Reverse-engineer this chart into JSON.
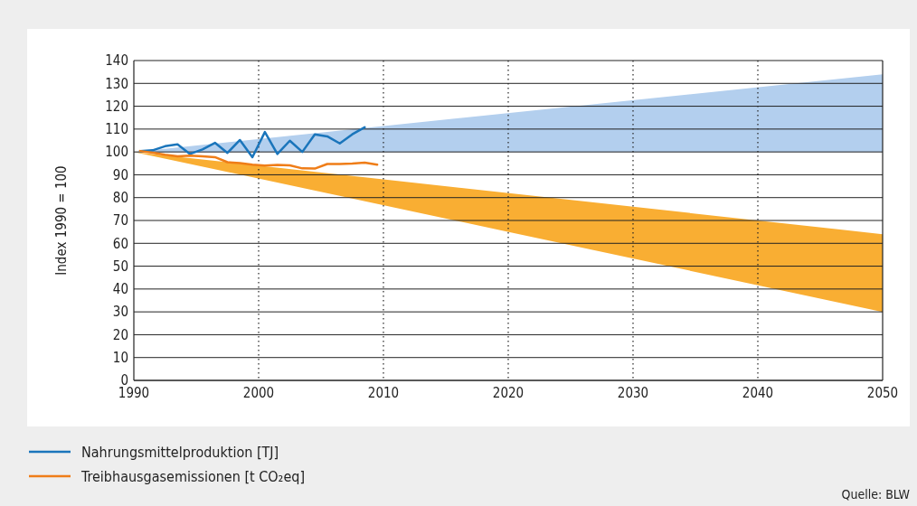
{
  "chart_data": {
    "type": "line",
    "ylabel": "Index 1990 = 100",
    "xlim": [
      1990,
      2050
    ],
    "xticks": [
      1990,
      2000,
      2010,
      2020,
      2030,
      2040,
      2050
    ],
    "ylim": [
      0,
      140
    ],
    "yticks": [
      0,
      10,
      20,
      30,
      40,
      50,
      60,
      70,
      80,
      90,
      100,
      110,
      120,
      130,
      140
    ],
    "grid": true,
    "legend": "bottom",
    "marker": "none",
    "line_style": "solid",
    "annotations": [
      "Quelle: BLW"
    ],
    "series": [
      {
        "type": "area",
        "color": "#b3cfee",
        "x": [
          1990,
          2050
        ],
        "lower": [
          100,
          100
        ],
        "upper": [
          100,
          134
        ],
        "values": [
          null,
          null
        ]
      },
      {
        "type": "area",
        "color": "#f9ae33",
        "x": [
          1990,
          2050
        ],
        "lower": [
          100,
          30
        ],
        "upper": [
          100,
          64
        ],
        "values": [
          null,
          null
        ]
      },
      {
        "name": "Nahrungsmittelproduktion [TJ]",
        "color": "#1a75bb",
        "x": [
          1990.5,
          1991.5,
          1992.5,
          1993.5,
          1994.5,
          1995.5,
          1996.5,
          1997.5,
          1998.5,
          1999.5,
          2000.5,
          2001.5,
          2002.5,
          2003.5,
          2004.5,
          2005.5,
          2006.5,
          2007.5,
          2008.5
        ],
        "values": [
          100.4,
          100.7,
          102.5,
          103.3,
          99.1,
          101.1,
          104,
          99.6,
          105.2,
          97.7,
          108.7,
          99.1,
          104.9,
          100,
          107.7,
          106.8,
          103.7,
          107.7,
          110.8
        ]
      },
      {
        "name": "Treibhausgasemissionen [t CO₂eq]",
        "color": "#ef7d18",
        "x": [
          1990.5,
          1991.5,
          1992.5,
          1993.5,
          1994.5,
          1995.5,
          1996.5,
          1997.5,
          1998.5,
          1999.5,
          2000.5,
          2001.5,
          2002.5,
          2003.5,
          2004.5,
          2005.5,
          2006.5,
          2007.5,
          2008.5,
          2009.5
        ],
        "values": [
          100.4,
          99.7,
          98.8,
          98.1,
          98.4,
          98.1,
          97.7,
          95.5,
          95.1,
          94.4,
          94,
          94.3,
          94.1,
          92.8,
          92.7,
          94.7,
          94.7,
          94.9,
          95.3,
          94.4
        ]
      }
    ]
  }
}
